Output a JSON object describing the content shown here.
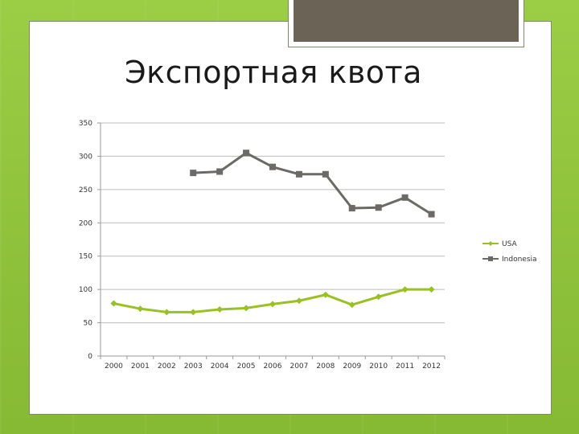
{
  "slide": {
    "title": "Экспортная квота"
  },
  "colors": {
    "usa": "#9ac122",
    "indonesia": "#6b6a66",
    "grid": "#bdbdbd",
    "background": "#8fc23a"
  },
  "chart_data": {
    "type": "line",
    "title": "",
    "xlabel": "",
    "ylabel": "",
    "categories": [
      "2000",
      "2001",
      "2002",
      "2003",
      "2004",
      "2005",
      "2006",
      "2007",
      "2008",
      "2009",
      "2010",
      "2011",
      "2012"
    ],
    "ylim": [
      0,
      350
    ],
    "yticks": [
      0,
      50,
      100,
      150,
      200,
      250,
      300,
      350
    ],
    "grid": true,
    "legend_position": "right",
    "series": [
      {
        "name": "USA",
        "marker": "diamond",
        "color": "#9ac122",
        "values": [
          79,
          71,
          66,
          66,
          70,
          72,
          78,
          83,
          92,
          77,
          89,
          100,
          100
        ]
      },
      {
        "name": "Indonesia",
        "marker": "square",
        "color": "#6b6a66",
        "values": [
          null,
          null,
          null,
          275,
          277,
          305,
          284,
          273,
          273,
          222,
          223,
          238,
          213
        ]
      }
    ]
  }
}
